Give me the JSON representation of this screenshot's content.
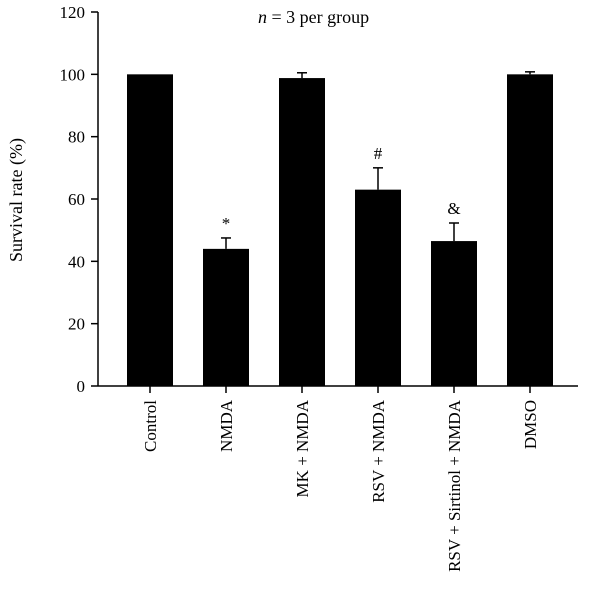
{
  "chart_data": {
    "type": "bar",
    "title": "",
    "annotation": {
      "italic": "n",
      "rest": " = 3 per group"
    },
    "ylabel": "Survival rate (%)",
    "xlabel": "",
    "ylim": [
      0,
      120
    ],
    "yticks": [
      0,
      20,
      40,
      60,
      80,
      100,
      120
    ],
    "grid": false,
    "bar_color": "#000000",
    "categories": [
      "Control",
      "NMDA",
      "MK + NMDA",
      "RSV + NMDA",
      "RSV + Sirtinol + NMDA",
      "DMSO"
    ],
    "values": [
      100,
      44,
      98.8,
      63,
      46.5,
      100
    ],
    "errors": [
      0,
      3.5,
      1.7,
      7,
      5.8,
      0.8
    ],
    "significance": [
      "",
      "*",
      "",
      "#",
      "&",
      ""
    ]
  }
}
